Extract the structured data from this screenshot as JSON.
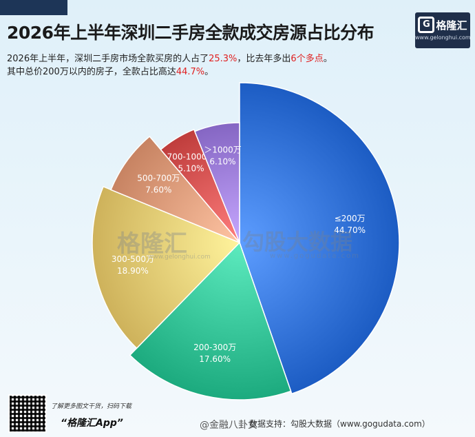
{
  "title": "2026年上半年深圳二手房全款成交房源占比分布",
  "logo": {
    "name": "格隆汇",
    "url": "www.gelonghui.com"
  },
  "subtitle": {
    "line1_pre": "2026年上半年，深圳二手房市场全款买房的人占了",
    "line1_val": "25.3%",
    "line1_mid": "，比去年多出",
    "line1_val2": "6个多点",
    "line1_post": "。",
    "line2_pre": "其中总价200万以内的房子，全款占比高达",
    "line2_val": "44.7%",
    "line2_post": "。"
  },
  "watermark": {
    "left": "格隆汇",
    "left_url": "www.gelonghui.com",
    "right": "勾股大数据",
    "right_url": "www.gogudata.com"
  },
  "footer": {
    "qr_note": "了解更多图文干货，扫码下载",
    "app_name": "“格隆汇App”",
    "weibo": "@金融八卦女",
    "source": "数据支持：勾股大数据（www.gogudata.com）"
  },
  "chart_data": {
    "type": "pie",
    "start_angle_deg": 0,
    "direction": "clockwise",
    "slices": [
      {
        "label": "≤200万",
        "value": 44.7,
        "pct": "44.70%",
        "color": "#3f7fe6"
      },
      {
        "label": "200-300万",
        "value": 17.6,
        "pct": "17.60%",
        "color": "#3fcda1"
      },
      {
        "label": "300-500万",
        "value": 18.9,
        "pct": "18.90%",
        "color": "#f1d57e"
      },
      {
        "label": "500-700万",
        "value": 7.6,
        "pct": "7.60%",
        "color": "#eaa685"
      },
      {
        "label": "700-1000万",
        "value": 5.1,
        "pct": "5.10%",
        "color": "#e2605f"
      },
      {
        "label": "＞1000万",
        "value": 6.1,
        "pct": "6.10%",
        "color": "#a889e6"
      }
    ]
  }
}
